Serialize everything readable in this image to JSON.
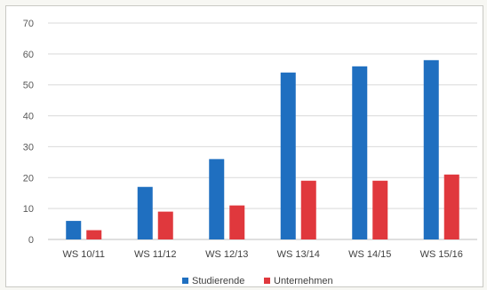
{
  "chart_data": {
    "type": "bar",
    "categories": [
      "WS 10/11",
      "WS 11/12",
      "WS 12/13",
      "WS 13/14",
      "WS 14/15",
      "WS 15/16"
    ],
    "series": [
      {
        "name": "Studierende",
        "values": [
          6,
          17,
          26,
          54,
          56,
          58
        ],
        "color": "#1f6fc0"
      },
      {
        "name": "Unternehmen",
        "values": [
          3,
          9,
          11,
          19,
          19,
          21
        ],
        "color": "#e0383d"
      }
    ],
    "yticks": [
      0,
      10,
      20,
      30,
      40,
      50,
      60,
      70
    ],
    "ylim": [
      0,
      70
    ],
    "grid": true,
    "legend": "bottom-center"
  }
}
